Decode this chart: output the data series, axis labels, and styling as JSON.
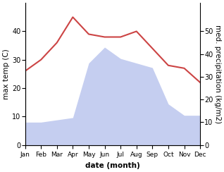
{
  "months": [
    "Jan",
    "Feb",
    "Mar",
    "Apr",
    "May",
    "Jun",
    "Jul",
    "Aug",
    "Sep",
    "Oct",
    "Nov",
    "Dec"
  ],
  "temperature": [
    26,
    30,
    36,
    45,
    39,
    38,
    38,
    40,
    34,
    28,
    27,
    22
  ],
  "precipitation": [
    10,
    10,
    11,
    12,
    36,
    43,
    38,
    36,
    34,
    18,
    13,
    13
  ],
  "temp_color": "#cc4444",
  "precip_fill_color": "#c5cef0",
  "left_ylim": [
    0,
    50
  ],
  "right_ylim": [
    0,
    62.5
  ],
  "left_yticks": [
    0,
    10,
    20,
    30,
    40
  ],
  "right_yticks": [
    0,
    10,
    20,
    30,
    40,
    50
  ],
  "xlabel": "date (month)",
  "ylabel_left": "max temp (C)",
  "ylabel_right": "med. precipitation (kg/m2)",
  "label_fontsize": 7.5,
  "tick_fontsize": 7,
  "linewidth": 1.5
}
